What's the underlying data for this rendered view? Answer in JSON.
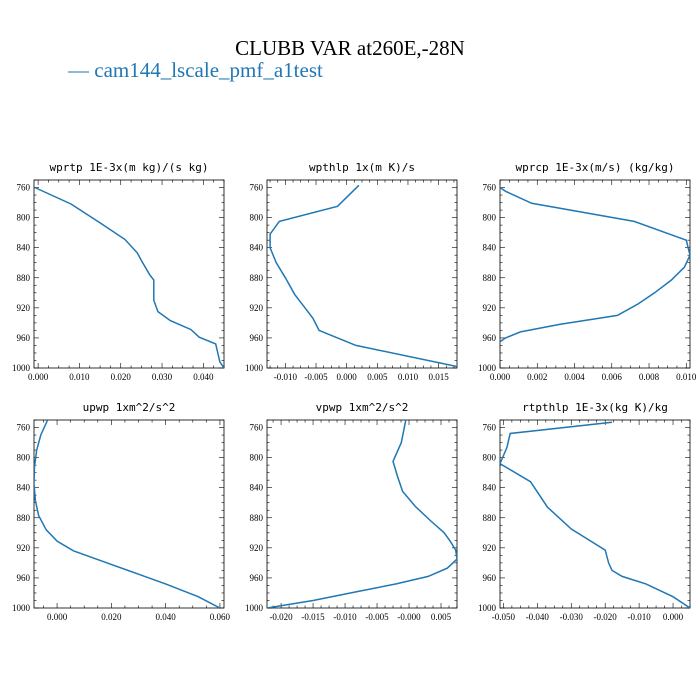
{
  "title": "CLUBB VAR at260E,-28N",
  "legend": {
    "glyph": "—",
    "label": "cam144_lscale_pmf_a1test",
    "color": "#1f77b4"
  },
  "chart_data": [
    {
      "type": "line",
      "title": "wprtp  1E-3x(m kg)/(s kg)",
      "xlim": [
        -0.001,
        0.045
      ],
      "ylim": [
        1000,
        750
      ],
      "y_reversed": true,
      "xticks": [
        0.0,
        0.01,
        0.02,
        0.03,
        0.04
      ],
      "xtick_labels": [
        "0.000",
        "0.010",
        "0.020",
        "0.030",
        "0.040"
      ],
      "yticks": [
        760,
        800,
        840,
        880,
        920,
        960,
        1000
      ],
      "series": [
        {
          "color": "#1f77b4",
          "x": [
            -0.0008,
            0.008,
            0.015,
            0.021,
            0.024,
            0.025,
            0.027,
            0.028,
            0.028,
            0.029,
            0.032,
            0.037,
            0.039,
            0.043,
            0.044,
            0.045
          ],
          "y": [
            760,
            782,
            807,
            829,
            847,
            857,
            876,
            883,
            910,
            925,
            937,
            949,
            959,
            968,
            992,
            1000
          ]
        }
      ]
    },
    {
      "type": "line",
      "title": "wpthlp  1x(m K)/s",
      "xlim": [
        -0.013,
        0.018
      ],
      "ylim": [
        1000,
        750
      ],
      "y_reversed": true,
      "xticks": [
        -0.01,
        -0.005,
        0.0,
        0.005,
        0.01,
        0.015
      ],
      "xtick_labels": [
        "-0.010",
        "-0.005",
        "0.000",
        "0.005",
        "0.010",
        "0.015"
      ],
      "yticks": [
        760,
        800,
        840,
        880,
        920,
        960,
        1000
      ],
      "series": [
        {
          "color": "#1f77b4",
          "x": [
            0.002,
            -0.0015,
            -0.011,
            -0.0125,
            -0.0125,
            -0.0115,
            -0.01,
            -0.0085,
            -0.007,
            -0.0055,
            -0.0045,
            0.0015,
            0.018
          ],
          "y": [
            757,
            785,
            805,
            822,
            840,
            860,
            880,
            902,
            918,
            934,
            950,
            970,
            998
          ]
        }
      ]
    },
    {
      "type": "line",
      "title": "wprcp  1E-3x(m/s) (kg/kg)",
      "xlim": [
        0.0,
        0.0102
      ],
      "ylim": [
        1000,
        750
      ],
      "y_reversed": true,
      "xticks": [
        0.0,
        0.002,
        0.004,
        0.006,
        0.008,
        0.01
      ],
      "xtick_labels": [
        "0.000",
        "0.002",
        "0.004",
        "0.006",
        "0.008",
        "0.010"
      ],
      "yticks": [
        760,
        800,
        840,
        880,
        920,
        960,
        1000
      ],
      "series": [
        {
          "color": "#1f77b4",
          "x": [
            0.0,
            0.0003,
            0.0017,
            0.0072,
            0.01,
            0.0102,
            0.0099,
            0.0092,
            0.0083,
            0.0074,
            0.0063,
            0.0032,
            0.0011,
            0.0003,
            0.0
          ],
          "y": [
            760,
            765,
            781,
            805,
            830,
            850,
            866,
            883,
            900,
            915,
            930,
            942,
            952,
            960,
            965
          ]
        }
      ]
    },
    {
      "type": "line",
      "title": "upwp  1xm^2/s^2",
      "xlim": [
        -0.0085,
        0.0615
      ],
      "ylim": [
        1000,
        750
      ],
      "y_reversed": true,
      "xticks": [
        0.0,
        0.02,
        0.04,
        0.06
      ],
      "xtick_labels": [
        "0.000",
        "0.020",
        "0.040",
        "0.060"
      ],
      "yticks": [
        760,
        800,
        840,
        880,
        920,
        960,
        1000
      ],
      "series": [
        {
          "color": "#1f77b4",
          "x": [
            -0.0035,
            -0.006,
            -0.0075,
            -0.0083,
            -0.0085,
            -0.008,
            -0.0068,
            -0.004,
            0.0,
            0.006,
            0.016,
            0.03,
            0.04,
            0.052,
            0.06
          ],
          "y": [
            750,
            770,
            790,
            812,
            835,
            857,
            877,
            896,
            911,
            924,
            937,
            955,
            968,
            985,
            1000
          ]
        }
      ]
    },
    {
      "type": "line",
      "title": "vpwp  1xm^2/s^2",
      "xlim": [
        -0.0222,
        0.0075
      ],
      "ylim": [
        1000,
        750
      ],
      "y_reversed": true,
      "xticks": [
        -0.02,
        -0.015,
        -0.01,
        -0.005,
        0.0,
        0.005
      ],
      "xtick_labels": [
        "-0.020",
        "-0.015",
        "-0.010",
        "-0.005",
        "-0.000",
        "0.005"
      ],
      "yticks": [
        760,
        800,
        840,
        880,
        920,
        960,
        1000
      ],
      "series": [
        {
          "color": "#1f77b4",
          "x": [
            -0.0005,
            -0.0012,
            -0.0025,
            -0.0018,
            -0.001,
            0.001,
            0.0035,
            0.0055,
            0.0065,
            0.0073,
            0.0075,
            0.006,
            0.003,
            -0.002,
            -0.008,
            -0.015,
            -0.0222
          ],
          "y": [
            750,
            780,
            805,
            825,
            845,
            865,
            885,
            900,
            912,
            923,
            935,
            947,
            958,
            968,
            978,
            990,
            1000
          ]
        }
      ]
    },
    {
      "type": "line",
      "title": "rtpthlp  1E-3x(kg K)/kg",
      "xlim": [
        -0.051,
        0.005
      ],
      "ylim": [
        1000,
        750
      ],
      "y_reversed": true,
      "xticks": [
        -0.05,
        -0.04,
        -0.03,
        -0.02,
        -0.01,
        0.0
      ],
      "xtick_labels": [
        "-0.050",
        "-0.040",
        "-0.030",
        "-0.020",
        "-0.010",
        "0.000"
      ],
      "yticks": [
        760,
        800,
        840,
        880,
        920,
        960,
        1000
      ],
      "series": [
        {
          "color": "#1f77b4",
          "x": [
            -0.018,
            -0.048,
            -0.049,
            -0.051,
            -0.042,
            -0.037,
            -0.03,
            -0.02,
            -0.019,
            -0.018,
            -0.015,
            -0.008,
            0.0,
            0.005
          ],
          "y": [
            753,
            768,
            787,
            808,
            832,
            866,
            895,
            923,
            940,
            950,
            958,
            968,
            985,
            1000
          ]
        }
      ]
    }
  ]
}
